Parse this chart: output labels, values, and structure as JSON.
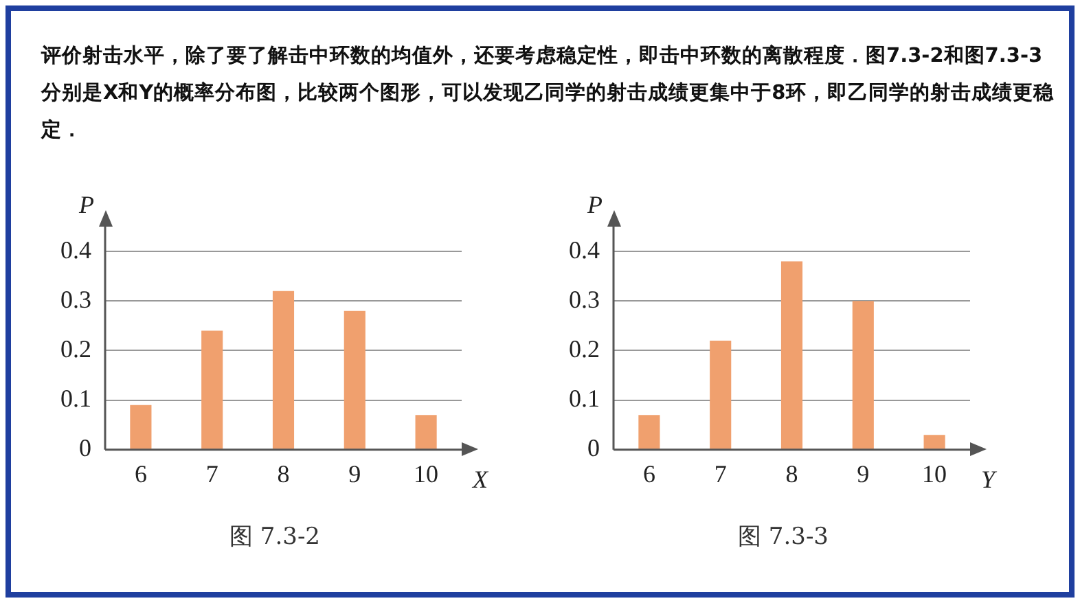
{
  "chart_data": [
    {
      "type": "bar",
      "xlabel": "X",
      "ylabel": "P",
      "categories": [
        "6",
        "7",
        "8",
        "9",
        "10"
      ],
      "values": [
        0.09,
        0.24,
        0.32,
        0.28,
        0.07
      ],
      "color": "#f0a06e",
      "ylim": [
        0,
        0.45
      ],
      "yticks": [
        {
          "value": 0,
          "label": "0"
        },
        0.1,
        0.2,
        0.3,
        0.4
      ],
      "grid": "y",
      "annotations": [
        "评价射击水平，除了要了解击中环数的均值外，还要考虑稳定性，即击中环数的离散程度．图7.3-2和图7.3-3分别是X和Y的概率分布图，比较两个图形，可以发现乙同学的射击成绩更集中于8环，即乙同学的射击成绩更稳定．",
        "图 7.3-2"
      ]
    },
    {
      "type": "bar",
      "xlabel": "Y",
      "ylabel": "P",
      "categories": [
        "6",
        "7",
        "8",
        "9",
        "10"
      ],
      "values": [
        0.07,
        0.22,
        0.38,
        0.3,
        0.03
      ],
      "color": "#f0a06e",
      "ylim": [
        0,
        0.45
      ],
      "yticks": [
        {
          "value": 0,
          "label": "0"
        },
        0.1,
        0.2,
        0.3,
        0.4
      ],
      "grid": "y",
      "annotations": [
        "图 7.3-3"
      ]
    }
  ]
}
